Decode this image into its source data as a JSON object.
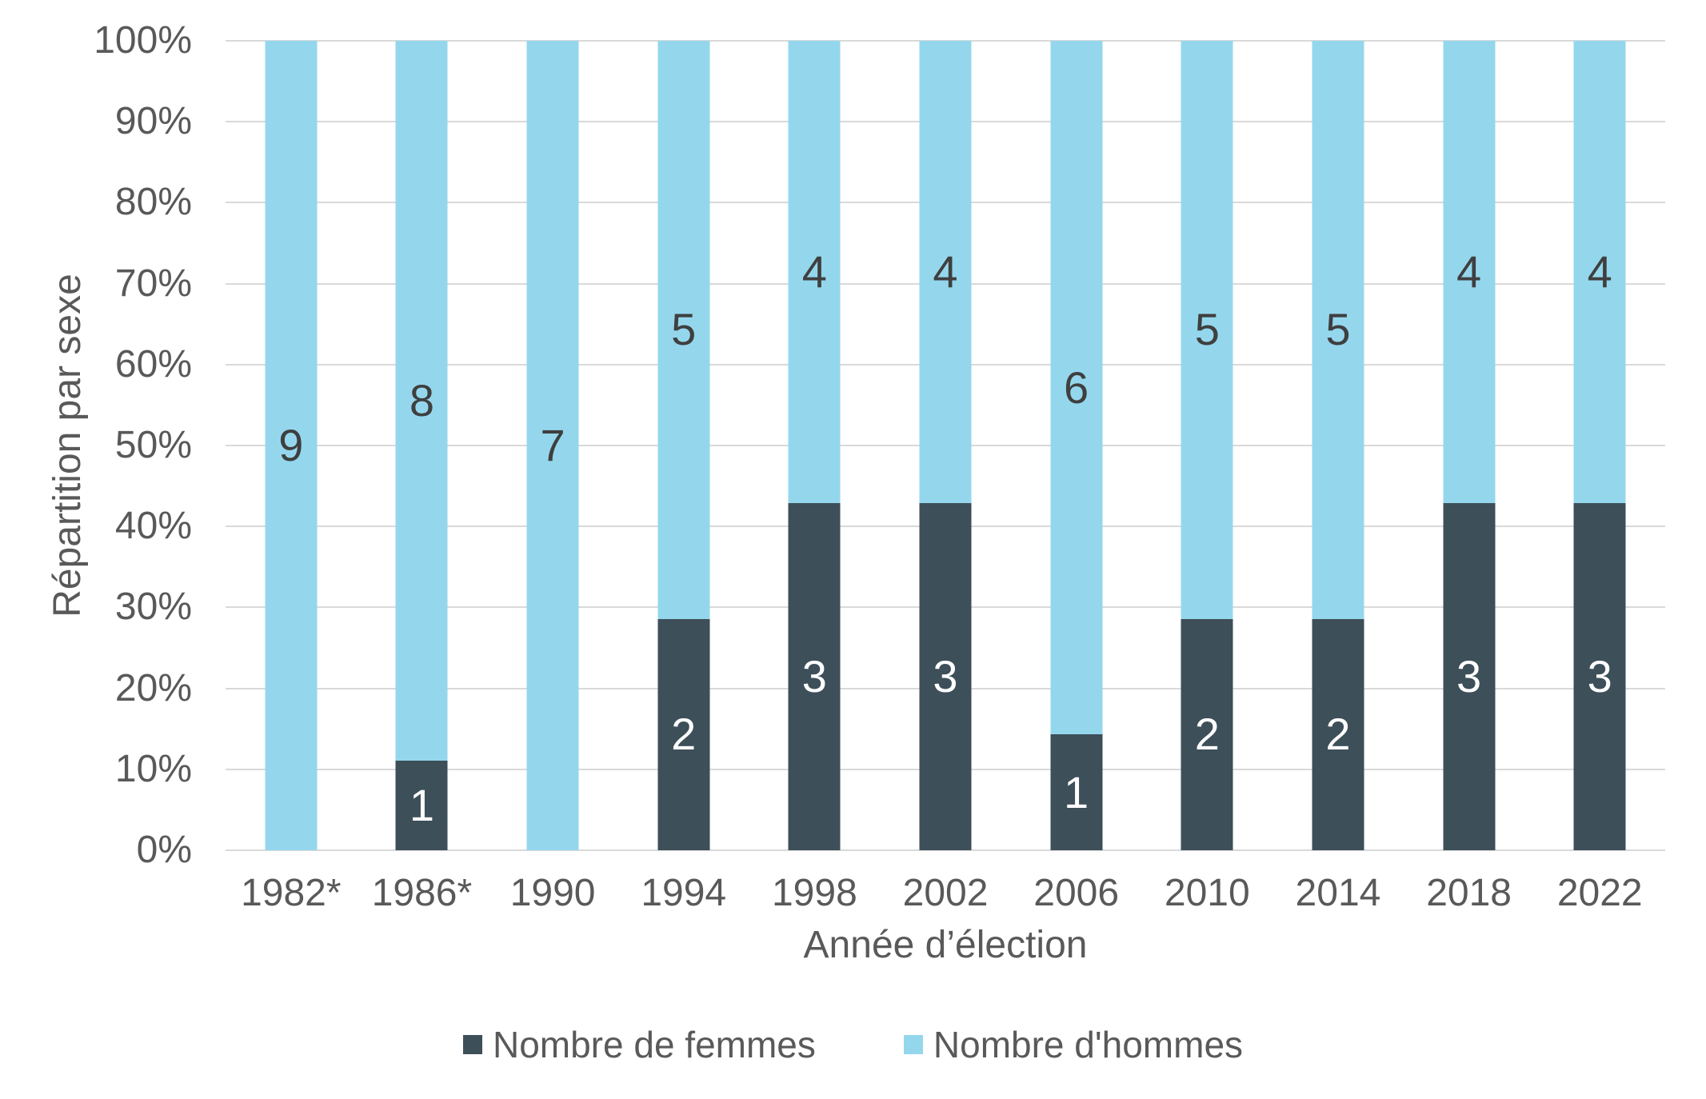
{
  "chart_data": {
    "type": "bar",
    "stacked": true,
    "percent_stacked": true,
    "categories": [
      "1982*",
      "1986*",
      "1990",
      "1994",
      "1998",
      "2002",
      "2006",
      "2010",
      "2014",
      "2018",
      "2022"
    ],
    "series": [
      {
        "name": "Nombre de femmes",
        "values": [
          0,
          1,
          0,
          2,
          3,
          3,
          1,
          2,
          2,
          3,
          3
        ],
        "color": "#3D4F59",
        "label_color": "#FFFFFF"
      },
      {
        "name": "Nombre d'hommes",
        "values": [
          9,
          8,
          7,
          5,
          4,
          4,
          6,
          5,
          5,
          4,
          4
        ],
        "color": "#94D7ED",
        "label_color": "#3F3F3F"
      }
    ],
    "title": "",
    "xlabel": "Année d’élection",
    "ylabel": "Répartition par sexe",
    "ylim": [
      0,
      100
    ],
    "yticks": [
      "0%",
      "10%",
      "20%",
      "30%",
      "40%",
      "50%",
      "60%",
      "70%",
      "80%",
      "90%",
      "100%"
    ],
    "grid": true,
    "gridline_color": "#D9D9D9",
    "axis_text_color": "#595959",
    "legend_position": "bottom",
    "background_color": "#FFFFFF"
  }
}
